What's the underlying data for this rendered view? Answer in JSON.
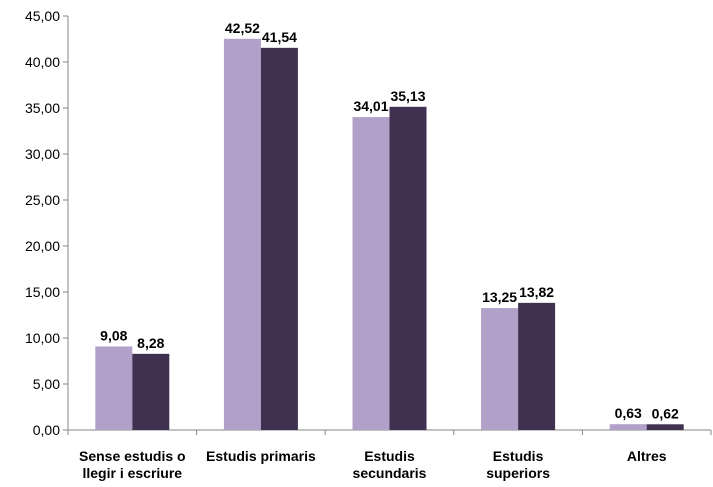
{
  "chart_data": {
    "type": "bar",
    "title": "",
    "xlabel": "",
    "ylabel": "",
    "categories": [
      [
        "Sense estudis o",
        "llegir i escriure"
      ],
      [
        "Estudis primaris"
      ],
      [
        "Estudis",
        "secundaris"
      ],
      [
        "Estudis",
        "superiors"
      ],
      [
        "Altres"
      ]
    ],
    "series": [
      {
        "color": "#b1a0c7",
        "values": [
          9.08,
          42.52,
          34.01,
          13.25,
          0.63
        ],
        "labels": [
          "9,08",
          "42,52",
          "34,01",
          "13,25",
          "0,63"
        ]
      },
      {
        "color": "#403151",
        "values": [
          8.28,
          41.54,
          35.13,
          13.82,
          0.62
        ],
        "labels": [
          "8,28",
          "41,54",
          "35,13",
          "13,82",
          "0,62"
        ]
      }
    ],
    "ylim": [
      0,
      45
    ],
    "yticks": [
      0,
      5,
      10,
      15,
      20,
      25,
      30,
      35,
      40,
      45
    ],
    "ytick_labels": [
      "0,00",
      "5,00",
      "10,00",
      "15,00",
      "20,00",
      "25,00",
      "30,00",
      "35,00",
      "40,00",
      "45,00"
    ],
    "grid": false,
    "legend": "none",
    "axis_color": "#868686"
  }
}
